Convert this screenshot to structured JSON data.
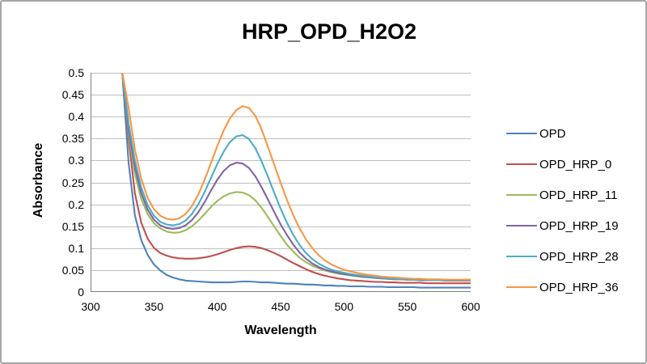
{
  "chart": {
    "title": "HRP_OPD_H2O2",
    "colors": {
      "grid": "#bfbfbf",
      "axis_line": "#808080",
      "chart_border": "#a6a6a6",
      "background": "#ffffff",
      "text": "#000000"
    }
  },
  "chart_data": {
    "type": "line",
    "title": "HRP_OPD_H2O2",
    "xlabel": "Wavelength",
    "ylabel": "Absorbance",
    "xlim": [
      300,
      600
    ],
    "ylim": [
      0,
      0.5
    ],
    "grid": "horizontal",
    "legend_position": "right",
    "x_axis": {
      "label": "Wavelength",
      "tick_values": [
        300,
        350,
        400,
        450,
        500,
        550,
        600
      ],
      "tick_labels": [
        "300",
        "350",
        "400",
        "450",
        "500",
        "550",
        "600"
      ]
    },
    "y_axis": {
      "label": "Absorbance",
      "tick_values": [
        0,
        0.05,
        0.1,
        0.15,
        0.2,
        0.25,
        0.3,
        0.35,
        0.4,
        0.45,
        0.5
      ],
      "tick_labels": [
        "0",
        "0.05",
        "0.1",
        "0.15",
        "0.2",
        "0.25",
        "0.3",
        "0.35",
        "0.4",
        "0.45",
        "0.5"
      ]
    },
    "x": [
      325,
      330,
      335,
      340,
      345,
      350,
      355,
      360,
      365,
      370,
      375,
      380,
      385,
      390,
      395,
      400,
      405,
      410,
      415,
      420,
      425,
      430,
      435,
      440,
      445,
      450,
      455,
      460,
      465,
      470,
      475,
      480,
      485,
      490,
      495,
      500,
      505,
      510,
      515,
      520,
      525,
      530,
      535,
      540,
      545,
      550,
      555,
      560,
      565,
      570,
      575,
      580,
      585,
      590,
      595,
      600
    ],
    "series": [
      {
        "name": "OPD",
        "color": "#4f81bd",
        "values": [
          0.5,
          0.295,
          0.175,
          0.118,
          0.085,
          0.063,
          0.049,
          0.039,
          0.033,
          0.029,
          0.026,
          0.025,
          0.024,
          0.023,
          0.022,
          0.022,
          0.022,
          0.022,
          0.023,
          0.024,
          0.024,
          0.023,
          0.022,
          0.022,
          0.021,
          0.02,
          0.019,
          0.019,
          0.018,
          0.017,
          0.017,
          0.016,
          0.015,
          0.015,
          0.014,
          0.014,
          0.013,
          0.013,
          0.013,
          0.012,
          0.012,
          0.012,
          0.011,
          0.011,
          0.011,
          0.011,
          0.011,
          0.01,
          0.01,
          0.01,
          0.01,
          0.01,
          0.01,
          0.01,
          0.01,
          0.01
        ]
      },
      {
        "name": "OPD_HRP_0",
        "color": "#c0504d",
        "values": [
          0.5,
          0.35,
          0.225,
          0.158,
          0.122,
          0.101,
          0.089,
          0.083,
          0.079,
          0.077,
          0.076,
          0.076,
          0.077,
          0.079,
          0.082,
          0.086,
          0.091,
          0.096,
          0.1,
          0.103,
          0.104,
          0.103,
          0.1,
          0.095,
          0.089,
          0.082,
          0.074,
          0.066,
          0.059,
          0.052,
          0.046,
          0.041,
          0.037,
          0.034,
          0.031,
          0.029,
          0.027,
          0.026,
          0.025,
          0.024,
          0.023,
          0.023,
          0.022,
          0.022,
          0.021,
          0.021,
          0.021,
          0.021,
          0.02,
          0.02,
          0.02,
          0.02,
          0.02,
          0.02,
          0.02,
          0.02
        ]
      },
      {
        "name": "OPD_HRP_11",
        "color": "#9bbb59",
        "values": [
          0.5,
          0.36,
          0.27,
          0.212,
          0.178,
          0.157,
          0.145,
          0.138,
          0.135,
          0.136,
          0.141,
          0.15,
          0.163,
          0.178,
          0.194,
          0.208,
          0.218,
          0.225,
          0.228,
          0.227,
          0.221,
          0.209,
          0.192,
          0.171,
          0.149,
          0.128,
          0.108,
          0.092,
          0.078,
          0.068,
          0.06,
          0.054,
          0.049,
          0.045,
          0.042,
          0.04,
          0.038,
          0.036,
          0.034,
          0.033,
          0.032,
          0.031,
          0.03,
          0.03,
          0.029,
          0.029,
          0.028,
          0.028,
          0.028,
          0.028,
          0.028,
          0.028,
          0.028,
          0.028,
          0.028,
          0.028
        ]
      },
      {
        "name": "OPD_HRP_19",
        "color": "#8064a2",
        "values": [
          0.5,
          0.37,
          0.285,
          0.225,
          0.188,
          0.165,
          0.152,
          0.146,
          0.144,
          0.146,
          0.152,
          0.164,
          0.182,
          0.205,
          0.231,
          0.256,
          0.276,
          0.289,
          0.295,
          0.293,
          0.283,
          0.264,
          0.239,
          0.211,
          0.182,
          0.154,
          0.13,
          0.108,
          0.09,
          0.076,
          0.065,
          0.057,
          0.051,
          0.047,
          0.044,
          0.041,
          0.039,
          0.037,
          0.035,
          0.034,
          0.032,
          0.031,
          0.03,
          0.029,
          0.029,
          0.028,
          0.028,
          0.027,
          0.027,
          0.027,
          0.027,
          0.026,
          0.026,
          0.026,
          0.026,
          0.026
        ]
      },
      {
        "name": "OPD_HRP_28",
        "color": "#4bacc6",
        "values": [
          0.5,
          0.385,
          0.3,
          0.238,
          0.198,
          0.174,
          0.16,
          0.154,
          0.152,
          0.155,
          0.163,
          0.178,
          0.2,
          0.228,
          0.26,
          0.292,
          0.32,
          0.342,
          0.355,
          0.358,
          0.349,
          0.328,
          0.298,
          0.263,
          0.226,
          0.19,
          0.158,
          0.13,
          0.107,
          0.089,
          0.075,
          0.065,
          0.057,
          0.051,
          0.047,
          0.044,
          0.041,
          0.039,
          0.037,
          0.035,
          0.033,
          0.032,
          0.031,
          0.03,
          0.029,
          0.029,
          0.028,
          0.028,
          0.028,
          0.027,
          0.027,
          0.027,
          0.027,
          0.027,
          0.027,
          0.027
        ]
      },
      {
        "name": "OPD_HRP_36",
        "color": "#f79646",
        "values": [
          0.5,
          0.42,
          0.325,
          0.258,
          0.215,
          0.189,
          0.174,
          0.167,
          0.165,
          0.168,
          0.178,
          0.196,
          0.222,
          0.256,
          0.294,
          0.333,
          0.368,
          0.396,
          0.415,
          0.424,
          0.42,
          0.402,
          0.371,
          0.331,
          0.29,
          0.249,
          0.21,
          0.175,
          0.145,
          0.12,
          0.1,
          0.084,
          0.072,
          0.063,
          0.056,
          0.051,
          0.047,
          0.044,
          0.041,
          0.039,
          0.037,
          0.035,
          0.034,
          0.033,
          0.032,
          0.031,
          0.03,
          0.03,
          0.029,
          0.029,
          0.029,
          0.028,
          0.028,
          0.028,
          0.028,
          0.028
        ]
      }
    ]
  }
}
